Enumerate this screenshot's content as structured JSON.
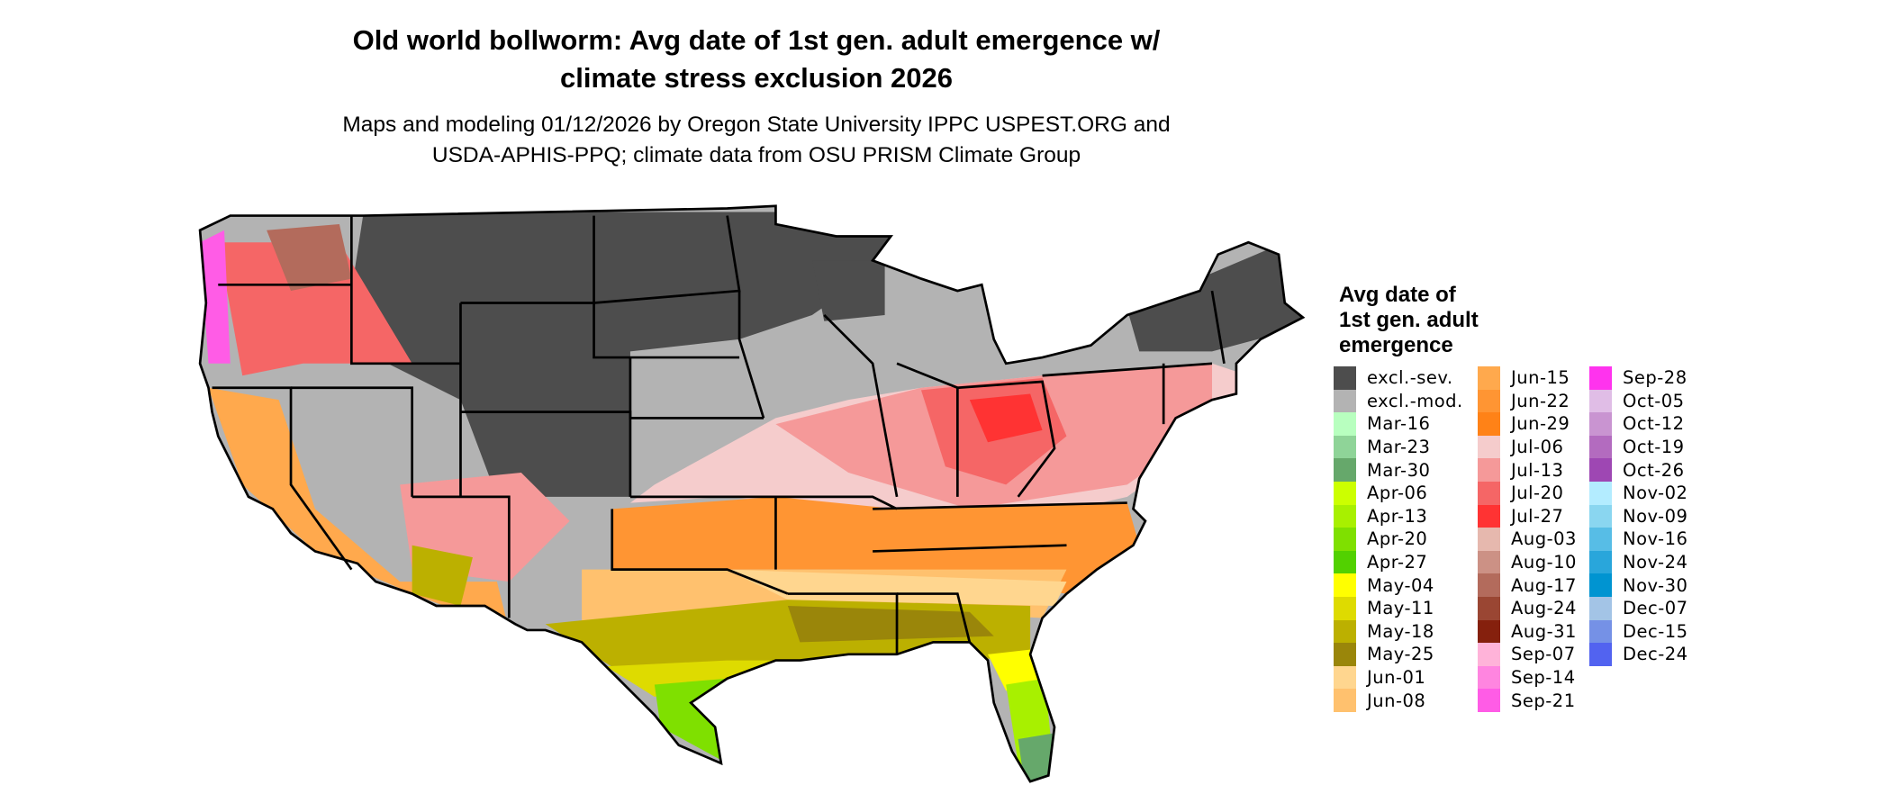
{
  "title": {
    "line1": "Old world bollworm: Avg date of 1st gen. adult emergence w/",
    "line2": "climate stress exclusion 2026"
  },
  "subtitle": {
    "line1": "Maps and modeling 01/12/2026 by Oregon State University IPPC USPEST.ORG and",
    "line2": "USDA-APHIS-PPQ; climate data from OSU PRISM Climate Group"
  },
  "map": {
    "region": "Contiguous United States",
    "border_color": "#000000"
  },
  "legend": {
    "title_line1": "Avg date of",
    "title_line2": "1st gen. adult",
    "title_line3": "emergence",
    "columns": [
      [
        {
          "label": "excl.-sev.",
          "color": "#4d4d4d"
        },
        {
          "label": "excl.-mod.",
          "color": "#b3b3b3"
        },
        {
          "label": "Mar-16",
          "color": "#b8ffbf"
        },
        {
          "label": "Mar-23",
          "color": "#8fd498"
        },
        {
          "label": "Mar-30",
          "color": "#66a86b"
        },
        {
          "label": "Apr-06",
          "color": "#ccff00"
        },
        {
          "label": "Apr-13",
          "color": "#a8f000"
        },
        {
          "label": "Apr-20",
          "color": "#7fe000"
        },
        {
          "label": "Apr-27",
          "color": "#52d100"
        },
        {
          "label": "May-04",
          "color": "#ffff00"
        },
        {
          "label": "May-11",
          "color": "#dedb00"
        },
        {
          "label": "May-18",
          "color": "#bcb000"
        },
        {
          "label": "May-25",
          "color": "#9a860a"
        },
        {
          "label": "Jun-01",
          "color": "#ffd68f"
        },
        {
          "label": "Jun-08",
          "color": "#ffc16e"
        }
      ],
      [
        {
          "label": "Jun-15",
          "color": "#ffa94d"
        },
        {
          "label": "Jun-22",
          "color": "#ff9533"
        },
        {
          "label": "Jun-29",
          "color": "#ff8217"
        },
        {
          "label": "Jul-06",
          "color": "#f5cccc"
        },
        {
          "label": "Jul-13",
          "color": "#f59999"
        },
        {
          "label": "Jul-20",
          "color": "#f56666"
        },
        {
          "label": "Jul-27",
          "color": "#ff3333"
        },
        {
          "label": "Aug-03",
          "color": "#e6b8ae"
        },
        {
          "label": "Aug-10",
          "color": "#cc9185"
        },
        {
          "label": "Aug-17",
          "color": "#b36b5c"
        },
        {
          "label": "Aug-24",
          "color": "#9a4633"
        },
        {
          "label": "Aug-31",
          "color": "#85200d"
        },
        {
          "label": "Sep-07",
          "color": "#ffb3d9"
        },
        {
          "label": "Sep-14",
          "color": "#ff85e0"
        },
        {
          "label": "Sep-21",
          "color": "#ff5ce6"
        }
      ],
      [
        {
          "label": "Sep-28",
          "color": "#ff33ee"
        },
        {
          "label": "Oct-05",
          "color": "#e0bde6"
        },
        {
          "label": "Oct-12",
          "color": "#c994d1"
        },
        {
          "label": "Oct-19",
          "color": "#b36bbf"
        },
        {
          "label": "Oct-26",
          "color": "#9e47b3"
        },
        {
          "label": "Nov-02",
          "color": "#b3ecff"
        },
        {
          "label": "Nov-09",
          "color": "#8ad6f0"
        },
        {
          "label": "Nov-16",
          "color": "#57bde6"
        },
        {
          "label": "Nov-24",
          "color": "#29a6db"
        },
        {
          "label": "Nov-30",
          "color": "#0094d1"
        },
        {
          "label": "Dec-07",
          "color": "#a3c4e6"
        },
        {
          "label": "Dec-15",
          "color": "#7591e6"
        },
        {
          "label": "Dec-24",
          "color": "#5263f0"
        }
      ]
    ]
  }
}
